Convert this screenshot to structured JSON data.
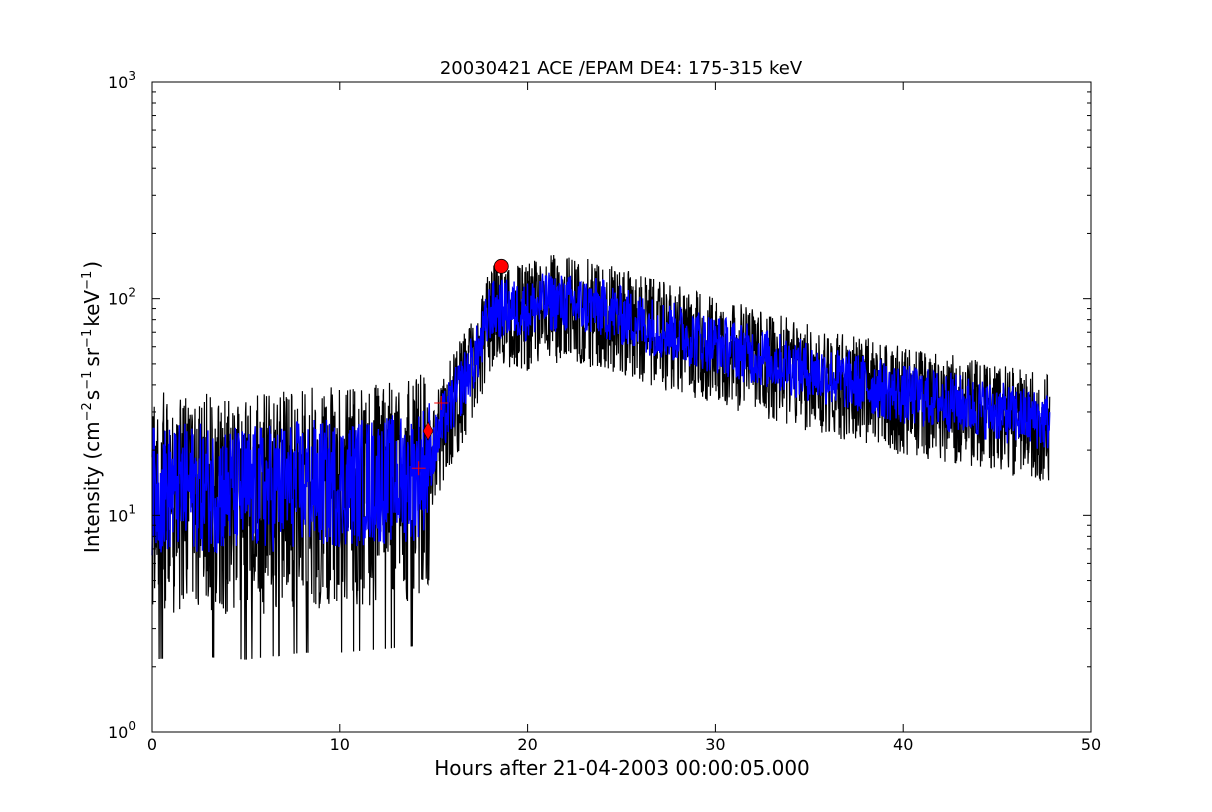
{
  "chart_data": {
    "type": "line",
    "title": "20030421 ACE /EPAM DE4: 175-315 keV",
    "xlabel": "Hours after 21-04-2003 00:00:05.000",
    "ylabel": {
      "prefix": "Intensity (cm",
      "exp1": "−2",
      "s": "s",
      "exp2": "−1",
      "sr": "sr",
      "exp3": "−1",
      "kev": "keV",
      "exp4": "−1",
      "suffix": ")"
    },
    "xlim": [
      0,
      50
    ],
    "ylim": [
      1,
      1000
    ],
    "yscale": "log",
    "grid": false,
    "x_ticks": [
      {
        "value": 0,
        "label": "0"
      },
      {
        "value": 10,
        "label": "10"
      },
      {
        "value": 20,
        "label": "20"
      },
      {
        "value": 30,
        "label": "30"
      },
      {
        "value": 40,
        "label": "40"
      },
      {
        "value": 50,
        "label": "50"
      }
    ],
    "y_ticks": [
      {
        "value": 1,
        "base": "10",
        "exp": "0"
      },
      {
        "value": 10,
        "base": "10",
        "exp": "1"
      },
      {
        "value": 100,
        "base": "10",
        "exp": "2"
      },
      {
        "value": 1000,
        "base": "10",
        "exp": "3"
      }
    ],
    "series": [
      {
        "color": "#000000",
        "style": "raw",
        "x_range": [
          0,
          47.8
        ],
        "trend": [
          [
            0,
            13
          ],
          [
            2,
            13.5
          ],
          [
            5,
            13
          ],
          [
            8,
            14
          ],
          [
            10,
            14
          ],
          [
            12,
            14.5
          ],
          [
            14,
            15
          ],
          [
            14.8,
            18
          ],
          [
            15.5,
            27
          ],
          [
            16.5,
            40
          ],
          [
            17.5,
            60
          ],
          [
            18,
            88
          ],
          [
            19,
            90
          ],
          [
            20,
            88
          ],
          [
            21,
            97
          ],
          [
            22,
            95
          ],
          [
            24,
            90
          ],
          [
            25,
            83
          ],
          [
            27,
            73
          ],
          [
            30,
            62
          ],
          [
            32,
            55
          ],
          [
            35,
            46
          ],
          [
            38,
            40
          ],
          [
            40,
            36
          ],
          [
            42,
            34
          ],
          [
            45,
            30
          ],
          [
            47.8,
            27
          ]
        ],
        "noise_low": 0.42,
        "noise_high": 0.5,
        "spread_low_baseline": 0.58,
        "spread_high_baseline": 0.45,
        "spread_low_event": 0.28,
        "spread_high_event": 0.22
      },
      {
        "color": "#0000ff",
        "style": "smoothed",
        "x_range": [
          0,
          47.8
        ],
        "trend": [
          [
            0,
            13
          ],
          [
            2,
            13.5
          ],
          [
            5,
            13
          ],
          [
            8,
            14
          ],
          [
            10,
            14
          ],
          [
            12,
            14.5
          ],
          [
            14,
            15
          ],
          [
            14.8,
            18
          ],
          [
            15.5,
            27
          ],
          [
            16.5,
            40
          ],
          [
            17.5,
            60
          ],
          [
            18,
            88
          ],
          [
            19,
            90
          ],
          [
            20,
            88
          ],
          [
            21,
            97
          ],
          [
            22,
            95
          ],
          [
            24,
            90
          ],
          [
            25,
            83
          ],
          [
            27,
            73
          ],
          [
            30,
            62
          ],
          [
            32,
            55
          ],
          [
            35,
            46
          ],
          [
            38,
            40
          ],
          [
            40,
            36
          ],
          [
            42,
            34
          ],
          [
            45,
            30
          ],
          [
            47.8,
            27
          ]
        ],
        "spread_baseline": 0.3,
        "spread_event": 0.14
      }
    ],
    "markers": [
      {
        "shape": "plus",
        "x": 14.2,
        "y": 16.5,
        "color": "#ff0000"
      },
      {
        "shape": "plus",
        "x": 15.4,
        "y": 33,
        "color": "#ff0000"
      },
      {
        "shape": "diamond",
        "x": 14.7,
        "y": 24.5,
        "color": "#ff0000"
      },
      {
        "shape": "circle",
        "x": 18.6,
        "y": 141,
        "color": "#ff0000"
      }
    ]
  }
}
